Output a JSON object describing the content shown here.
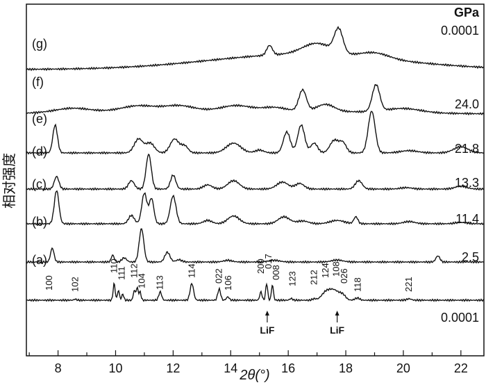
{
  "chart_data": {
    "type": "line",
    "title": "",
    "xlabel": "2θ(°)",
    "ylabel": "相对强度",
    "unit_label": "GPa",
    "xlim": [
      6.9,
      22.8
    ],
    "x_ticks": [
      8,
      10,
      12,
      14,
      16,
      18,
      20,
      22
    ],
    "grid": false,
    "series": [
      {
        "name": "(a)",
        "pressure": "0.0001",
        "peaks": [
          [
            8.6,
            0.04,
            0.04
          ],
          [
            9.95,
            0.6,
            0.035
          ],
          [
            10.1,
            0.35,
            0.035
          ],
          [
            10.25,
            0.22,
            0.035
          ],
          [
            10.65,
            0.35,
            0.035
          ],
          [
            10.75,
            0.45,
            0.035
          ],
          [
            10.85,
            0.3,
            0.035
          ],
          [
            11.55,
            0.3,
            0.05
          ],
          [
            12.65,
            0.6,
            0.06
          ],
          [
            13.6,
            0.4,
            0.05
          ],
          [
            13.9,
            0.12,
            0.05
          ],
          [
            15.05,
            0.3,
            0.04
          ],
          [
            15.25,
            0.6,
            0.035
          ],
          [
            15.45,
            0.55,
            0.035
          ],
          [
            16.1,
            0.06,
            0.05
          ],
          [
            16.9,
            0.05,
            0.06
          ],
          [
            17.3,
            0.25,
            0.15
          ],
          [
            17.6,
            0.35,
            0.18
          ],
          [
            17.9,
            0.15,
            0.1
          ],
          [
            18.4,
            0.08,
            0.08
          ],
          [
            20.2,
            0.05,
            0.08
          ]
        ]
      },
      {
        "name": "(b)",
        "pressure": "2.5",
        "peaks": [
          [
            7.8,
            0.5,
            0.06
          ],
          [
            9.9,
            0.25,
            0.05
          ],
          [
            10.3,
            0.15,
            0.08
          ],
          [
            10.9,
            1.2,
            0.08
          ],
          [
            11.8,
            0.35,
            0.09
          ],
          [
            12.2,
            0.08,
            0.1
          ],
          [
            13.9,
            0.06,
            0.15
          ],
          [
            15.5,
            0.06,
            0.2
          ],
          [
            17.7,
            0.07,
            0.2
          ],
          [
            21.2,
            0.22,
            0.07
          ]
        ]
      },
      {
        "name": "(c)",
        "pressure": "11.4",
        "peaks": [
          [
            7.95,
            1.2,
            0.08
          ],
          [
            10.55,
            0.3,
            0.1
          ],
          [
            11.0,
            1.1,
            0.09
          ],
          [
            11.25,
            0.9,
            0.08
          ],
          [
            12.0,
            1.0,
            0.1
          ],
          [
            13.2,
            0.12,
            0.15
          ],
          [
            14.1,
            0.28,
            0.2
          ],
          [
            15.85,
            0.25,
            0.2
          ],
          [
            16.5,
            0.1,
            0.2
          ],
          [
            17.7,
            0.12,
            0.25
          ],
          [
            18.35,
            0.25,
            0.07
          ],
          [
            20.2,
            0.08,
            0.2
          ],
          [
            22.0,
            0.05,
            0.2
          ]
        ]
      },
      {
        "name": "(d)",
        "pressure": "13.3",
        "peaks": [
          [
            7.95,
            0.45,
            0.08
          ],
          [
            10.55,
            0.3,
            0.1
          ],
          [
            11.15,
            1.25,
            0.09
          ],
          [
            12.0,
            0.5,
            0.09
          ],
          [
            13.2,
            0.15,
            0.15
          ],
          [
            14.1,
            0.3,
            0.2
          ],
          [
            15.8,
            0.25,
            0.2
          ],
          [
            16.4,
            0.2,
            0.15
          ],
          [
            18.45,
            0.3,
            0.12
          ],
          [
            20.1,
            0.05,
            0.2
          ],
          [
            22.0,
            0.1,
            0.2
          ]
        ]
      },
      {
        "name": "(e)",
        "pressure": "21.8",
        "peaks": [
          [
            7.9,
            1.0,
            0.08
          ],
          [
            10.8,
            0.5,
            0.15
          ],
          [
            11.2,
            0.35,
            0.15
          ],
          [
            12.05,
            0.5,
            0.15
          ],
          [
            12.4,
            0.25,
            0.12
          ],
          [
            14.1,
            0.35,
            0.25
          ],
          [
            15.0,
            0.1,
            0.15
          ],
          [
            15.95,
            0.75,
            0.12
          ],
          [
            16.45,
            1.0,
            0.12
          ],
          [
            16.9,
            0.35,
            0.12
          ],
          [
            17.6,
            0.45,
            0.15
          ],
          [
            17.9,
            0.35,
            0.12
          ],
          [
            18.9,
            1.5,
            0.12
          ],
          [
            20.2,
            0.08,
            0.3
          ],
          [
            22.0,
            0.22,
            0.25
          ]
        ]
      },
      {
        "name": "(f)",
        "pressure": "24.0",
        "peaks": [
          [
            8.5,
            0.15,
            0.6
          ],
          [
            10.8,
            0.2,
            0.6
          ],
          [
            12.2,
            0.18,
            0.5
          ],
          [
            14.2,
            0.18,
            0.5
          ],
          [
            15.5,
            0.12,
            0.4
          ],
          [
            16.5,
            0.75,
            0.13
          ],
          [
            17.3,
            0.25,
            0.3
          ],
          [
            19.05,
            0.95,
            0.13
          ],
          [
            20.0,
            0.15,
            0.6
          ]
        ]
      },
      {
        "name": "(g)",
        "pressure": "0.0001",
        "peaks": [
          [
            15.35,
            0.35,
            0.1
          ],
          [
            17.0,
            0.4,
            0.5
          ],
          [
            17.75,
            0.85,
            0.15
          ],
          [
            19.0,
            0.2,
            0.5
          ]
        ]
      }
    ],
    "hkl_labels": [
      {
        "x": 7.7,
        "label": "100"
      },
      {
        "x": 8.6,
        "label": "102"
      },
      {
        "x": 9.95,
        "label": "110"
      },
      {
        "x": 10.22,
        "label": "111"
      },
      {
        "x": 10.65,
        "label": "112"
      },
      {
        "x": 10.92,
        "label": "104"
      },
      {
        "x": 11.55,
        "label": "113"
      },
      {
        "x": 12.65,
        "label": "114"
      },
      {
        "x": 13.6,
        "label": "022"
      },
      {
        "x": 13.92,
        "label": "106"
      },
      {
        "x": 15.05,
        "label": "200"
      },
      {
        "x": 15.32,
        "label": "017"
      },
      {
        "x": 15.58,
        "label": "008"
      },
      {
        "x": 16.15,
        "label": "123"
      },
      {
        "x": 16.9,
        "label": "212"
      },
      {
        "x": 17.3,
        "label": "124"
      },
      {
        "x": 17.67,
        "label": "108"
      },
      {
        "x": 17.95,
        "label": "026"
      },
      {
        "x": 18.42,
        "label": "118"
      },
      {
        "x": 20.2,
        "label": "221"
      }
    ],
    "annotations": [
      {
        "x": 15.27,
        "label": "LiF"
      },
      {
        "x": 17.7,
        "label": "LiF"
      }
    ]
  }
}
